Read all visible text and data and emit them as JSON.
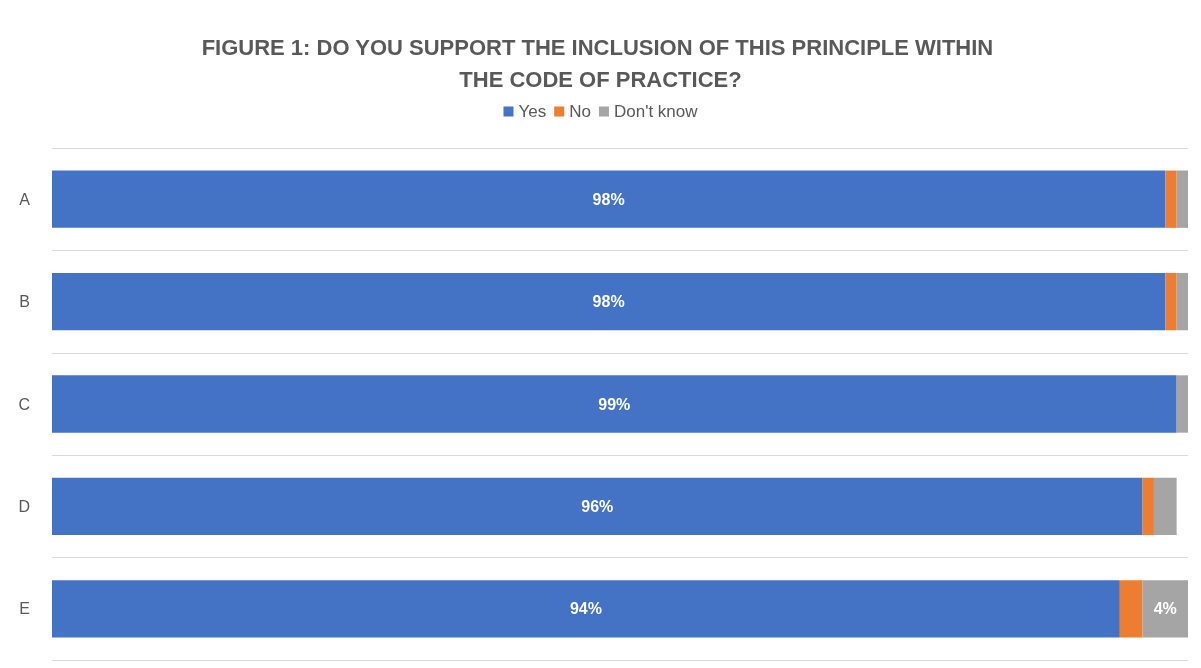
{
  "chart_data": {
    "type": "bar",
    "orientation": "horizontal",
    "stacked": true,
    "title": "FIGURE 1: DO YOU SUPPORT THE INCLUSION OF THIS PRINCIPLE WITHIN THE CODE OF PRACTICE?",
    "categories": [
      "A",
      "B",
      "C",
      "D",
      "E"
    ],
    "series": [
      {
        "name": "Yes",
        "color": "#4472c4",
        "values": [
          98,
          98,
          99,
          96,
          94
        ],
        "value_labels": [
          "98%",
          "98%",
          "99%",
          "96%",
          "94%"
        ]
      },
      {
        "name": "No",
        "color": "#ed7d31",
        "values": [
          1,
          1,
          0,
          1,
          2
        ],
        "value_labels": [
          null,
          null,
          null,
          null,
          null
        ]
      },
      {
        "name": "Don't know",
        "color": "#a5a5a5",
        "values": [
          1,
          1,
          1,
          2,
          4
        ],
        "value_labels": [
          null,
          null,
          null,
          null,
          "4%"
        ]
      }
    ],
    "xlim": [
      0,
      100
    ],
    "tick_labels": "y",
    "grid": "y",
    "legend": "top"
  }
}
